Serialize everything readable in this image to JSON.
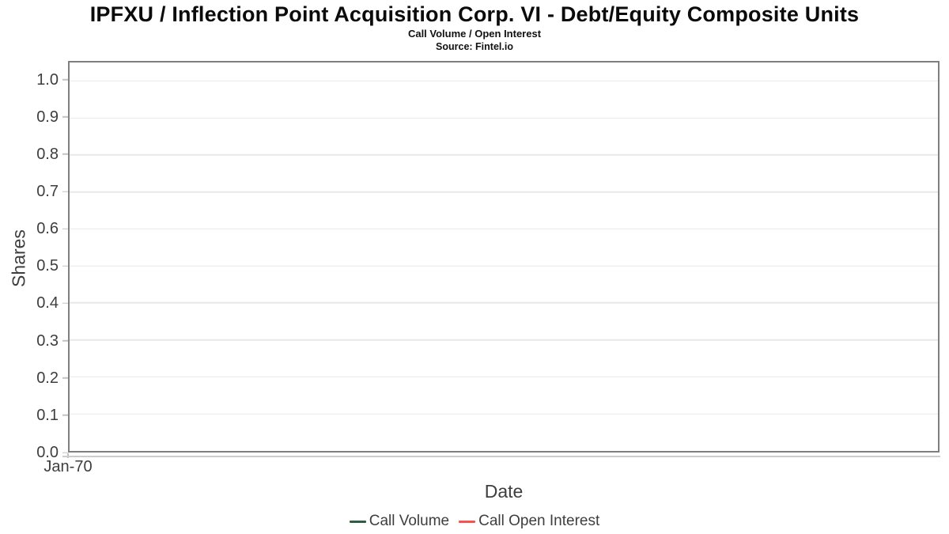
{
  "chart_data": {
    "type": "line",
    "title": "IPFXU / Inflection Point Acquisition Corp. VI - Debt/Equity Composite Units",
    "subtitle": "Call Volume / Open Interest",
    "source": "Source: Fintel.io",
    "xlabel": "Date",
    "ylabel": "Shares",
    "x_ticks": [
      "Jan-70"
    ],
    "y_ticks": [
      "0.0",
      "0.1",
      "0.2",
      "0.3",
      "0.4",
      "0.5",
      "0.6",
      "0.7",
      "0.8",
      "0.9",
      "1.0"
    ],
    "ylim": [
      0,
      1.05
    ],
    "grid": "horizontal",
    "legend_position": "bottom",
    "plot_empty": true,
    "series": [
      {
        "name": "Call Volume",
        "color": "#2E5E41",
        "x": [],
        "values": []
      },
      {
        "name": "Call Open Interest",
        "color": "#F8514E",
        "x": [],
        "values": []
      }
    ],
    "colors": {
      "plot_border": "#7f7f7f",
      "gridline": "#e8e8e8",
      "tick_mark": "#c2c2c2",
      "axis_text": "#3e3e3e",
      "title_text": "#0b0b0b"
    }
  }
}
